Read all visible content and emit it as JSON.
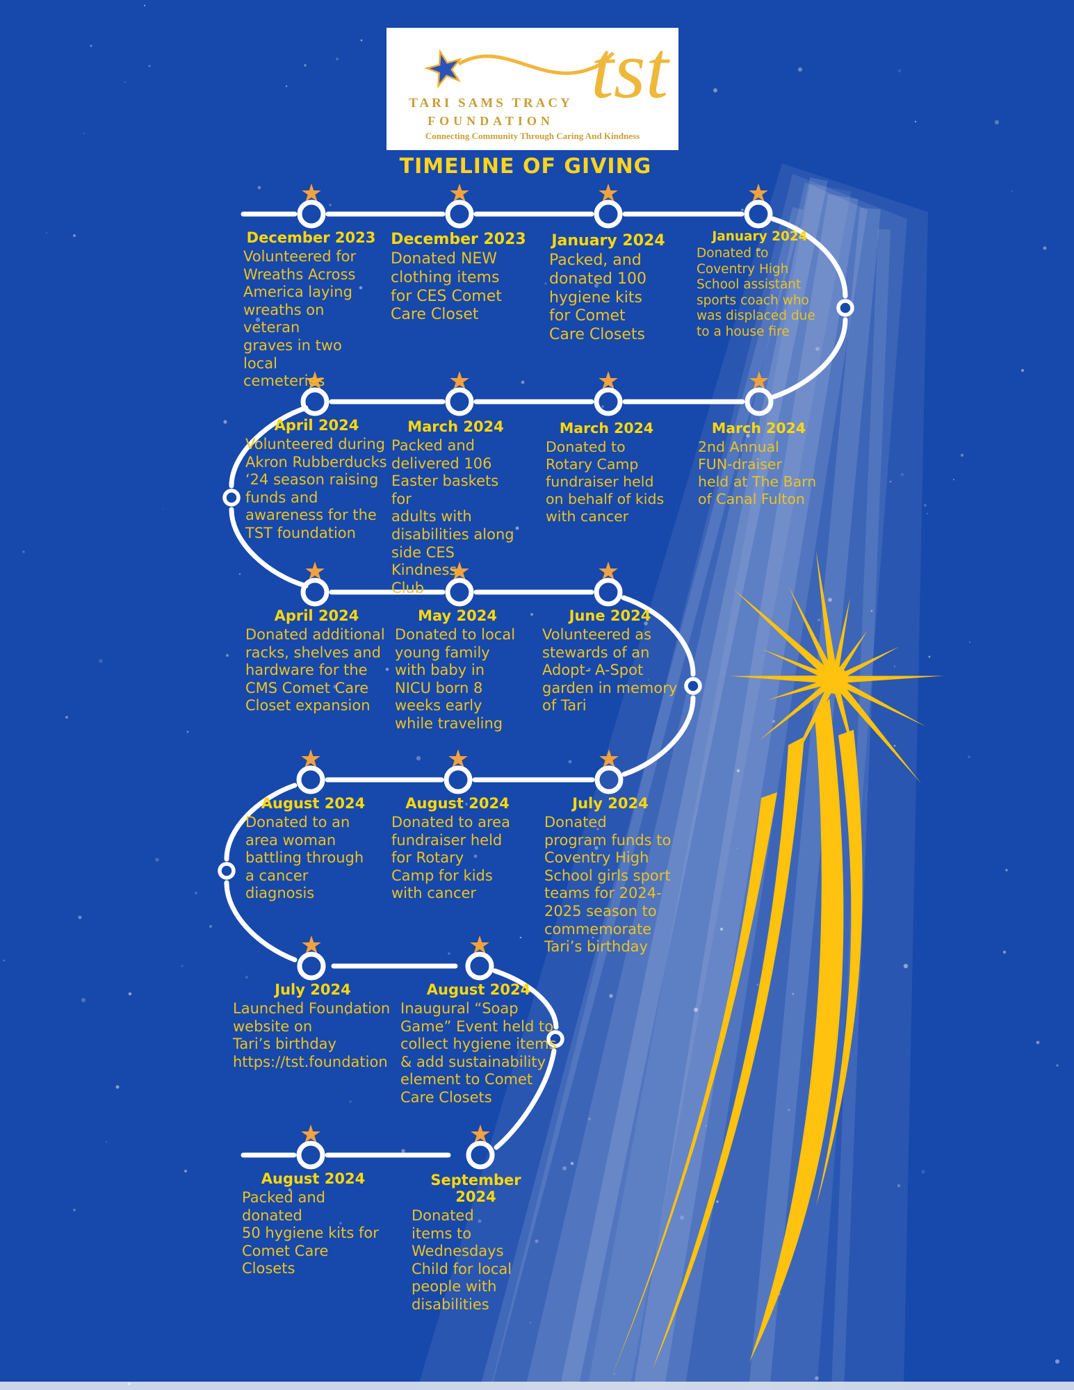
{
  "title": "TIMELINE OF GIVING",
  "logo": {
    "org_line1": "TARI SAMS TRACY",
    "org_line2": "FOUNDATION",
    "monogram": "tst",
    "tagline": "Connecting Community Through Caring And Kindness"
  },
  "colors": {
    "background_blue": "#1748AB",
    "brand_gold": "#FFC20E",
    "date_yellow": "#FFD80A",
    "body_yellow": "#ECC31F",
    "star_orange": "#F4A23E",
    "line_white": "#FFFFFF"
  },
  "timeline": {
    "rows": [
      {
        "entries": [
          {
            "date": "December 2023",
            "description": "Volunteered for\nWreaths Across\nAmerica laying\nwreaths on veteran\ngraves in two local\ncemeteries"
          },
          {
            "date": "December 2023",
            "description": "Donated NEW\nclothing items\nfor CES Comet\nCare Closet"
          },
          {
            "date": "January 2024",
            "description": "Packed, and\ndonated 100\nhygiene kits\nfor Comet\nCare Closets"
          },
          {
            "date": "January 2024",
            "description": "Donated to\nCoventry High\nSchool assistant\nsports coach who\nwas  displaced due\nto a house fire"
          }
        ]
      },
      {
        "entries": [
          {
            "date": "April 2024",
            "description": "Volunteered during\nAkron Rubberducks\n‘24 season raising\nfunds and\nawareness for the\nTST foundation"
          },
          {
            "date": "March 2024",
            "description": "Packed and\ndelivered 106\nEaster baskets for\nadults with\ndisabilities along\nside CES Kindness\nClub"
          },
          {
            "date": "March 2024",
            "description": "Donated to\nRotary Camp\nfundraiser held\non behalf of kids\nwith cancer"
          },
          {
            "date": "March 2024",
            "description": "2nd Annual\nFUN-draiser\nheld at The Barn\nof Canal Fulton"
          }
        ]
      },
      {
        "entries": [
          {
            "date": "April 2024",
            "description": "Donated additional\nracks, shelves and\nhardware for the\nCMS Comet Care\nCloset expansion"
          },
          {
            "date": "May 2024",
            "description": "Donated to local\nyoung family\nwith baby in\nNICU born 8\nweeks early\nwhile traveling"
          },
          {
            "date": "June 2024",
            "description": "Volunteered as\nstewards of an\nAdopt- A-Spot\ngarden in memory\nof Tari"
          }
        ]
      },
      {
        "entries": [
          {
            "date": "August 2024",
            "description": "Donated to an\narea woman\nbattling  through\na cancer\ndiagnosis"
          },
          {
            "date": "August 2024",
            "description": "Donated to area\nfundraiser held\nfor  Rotary\nCamp for kids\nwith cancer"
          },
          {
            "date": "July 2024",
            "description": "Donated\nprogram funds to\nCoventry High\nSchool girls sport\nteams for 2024-\n2025 season to\ncommemorate\nTari’s birthday"
          }
        ]
      },
      {
        "entries": [
          {
            "date": "July 2024",
            "description": "Launched Foundation\nwebsite on\nTari’s birthday\nhttps://tst.foundation"
          },
          {
            "date": "August 2024",
            "description": "Inaugural “Soap\nGame” Event held to\ncollect hygiene items\n& add sustainability\nelement to Comet\nCare Closets"
          }
        ]
      },
      {
        "entries": [
          {
            "date": "August 2024",
            "description": "Packed and donated\n50 hygiene kits for\nComet Care Closets"
          },
          {
            "date": "September 2024",
            "description": "Donated\nitems to\nWednesdays\nChild for local\npeople with\ndisabilities"
          }
        ]
      }
    ]
  }
}
